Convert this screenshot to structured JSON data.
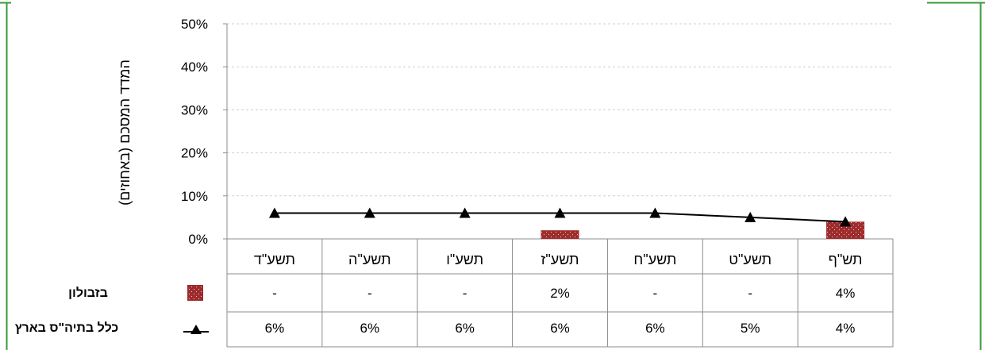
{
  "chart_data": {
    "type": "bar",
    "categories": [
      "תשע\"ד",
      "תשע\"ה",
      "תשע\"ו",
      "תשע\"ז",
      "תשע\"ח",
      "תשע\"ט",
      "תש\"ף"
    ],
    "series": [
      {
        "name": "בזבולון",
        "type": "bar",
        "values": [
          null,
          null,
          null,
          2,
          null,
          null,
          4
        ],
        "color": "#9e2b2b",
        "table_cells": [
          "-",
          "-",
          "-",
          "2%",
          "-",
          "-",
          "4%"
        ]
      },
      {
        "name": "כלל בתיה\"ס בארץ",
        "type": "line",
        "marker": "triangle",
        "values": [
          6,
          6,
          6,
          6,
          6,
          5,
          4
        ],
        "color": "#000000",
        "table_cells": [
          "6%",
          "6%",
          "6%",
          "6%",
          "6%",
          "5%",
          "4%"
        ]
      }
    ],
    "ylabel": "המדד המסכם (באחוזים)",
    "ylim": [
      0,
      50
    ],
    "yticks": [
      0,
      10,
      20,
      30,
      40,
      50
    ],
    "ytick_labels": [
      "0%",
      "10%",
      "20%",
      "30%",
      "40%",
      "50%"
    ],
    "grid": true,
    "legend": "left"
  },
  "colors": {
    "frame": "#3a9a3a",
    "grid": "#cfcfcf",
    "axis": "#8c8c8c"
  }
}
